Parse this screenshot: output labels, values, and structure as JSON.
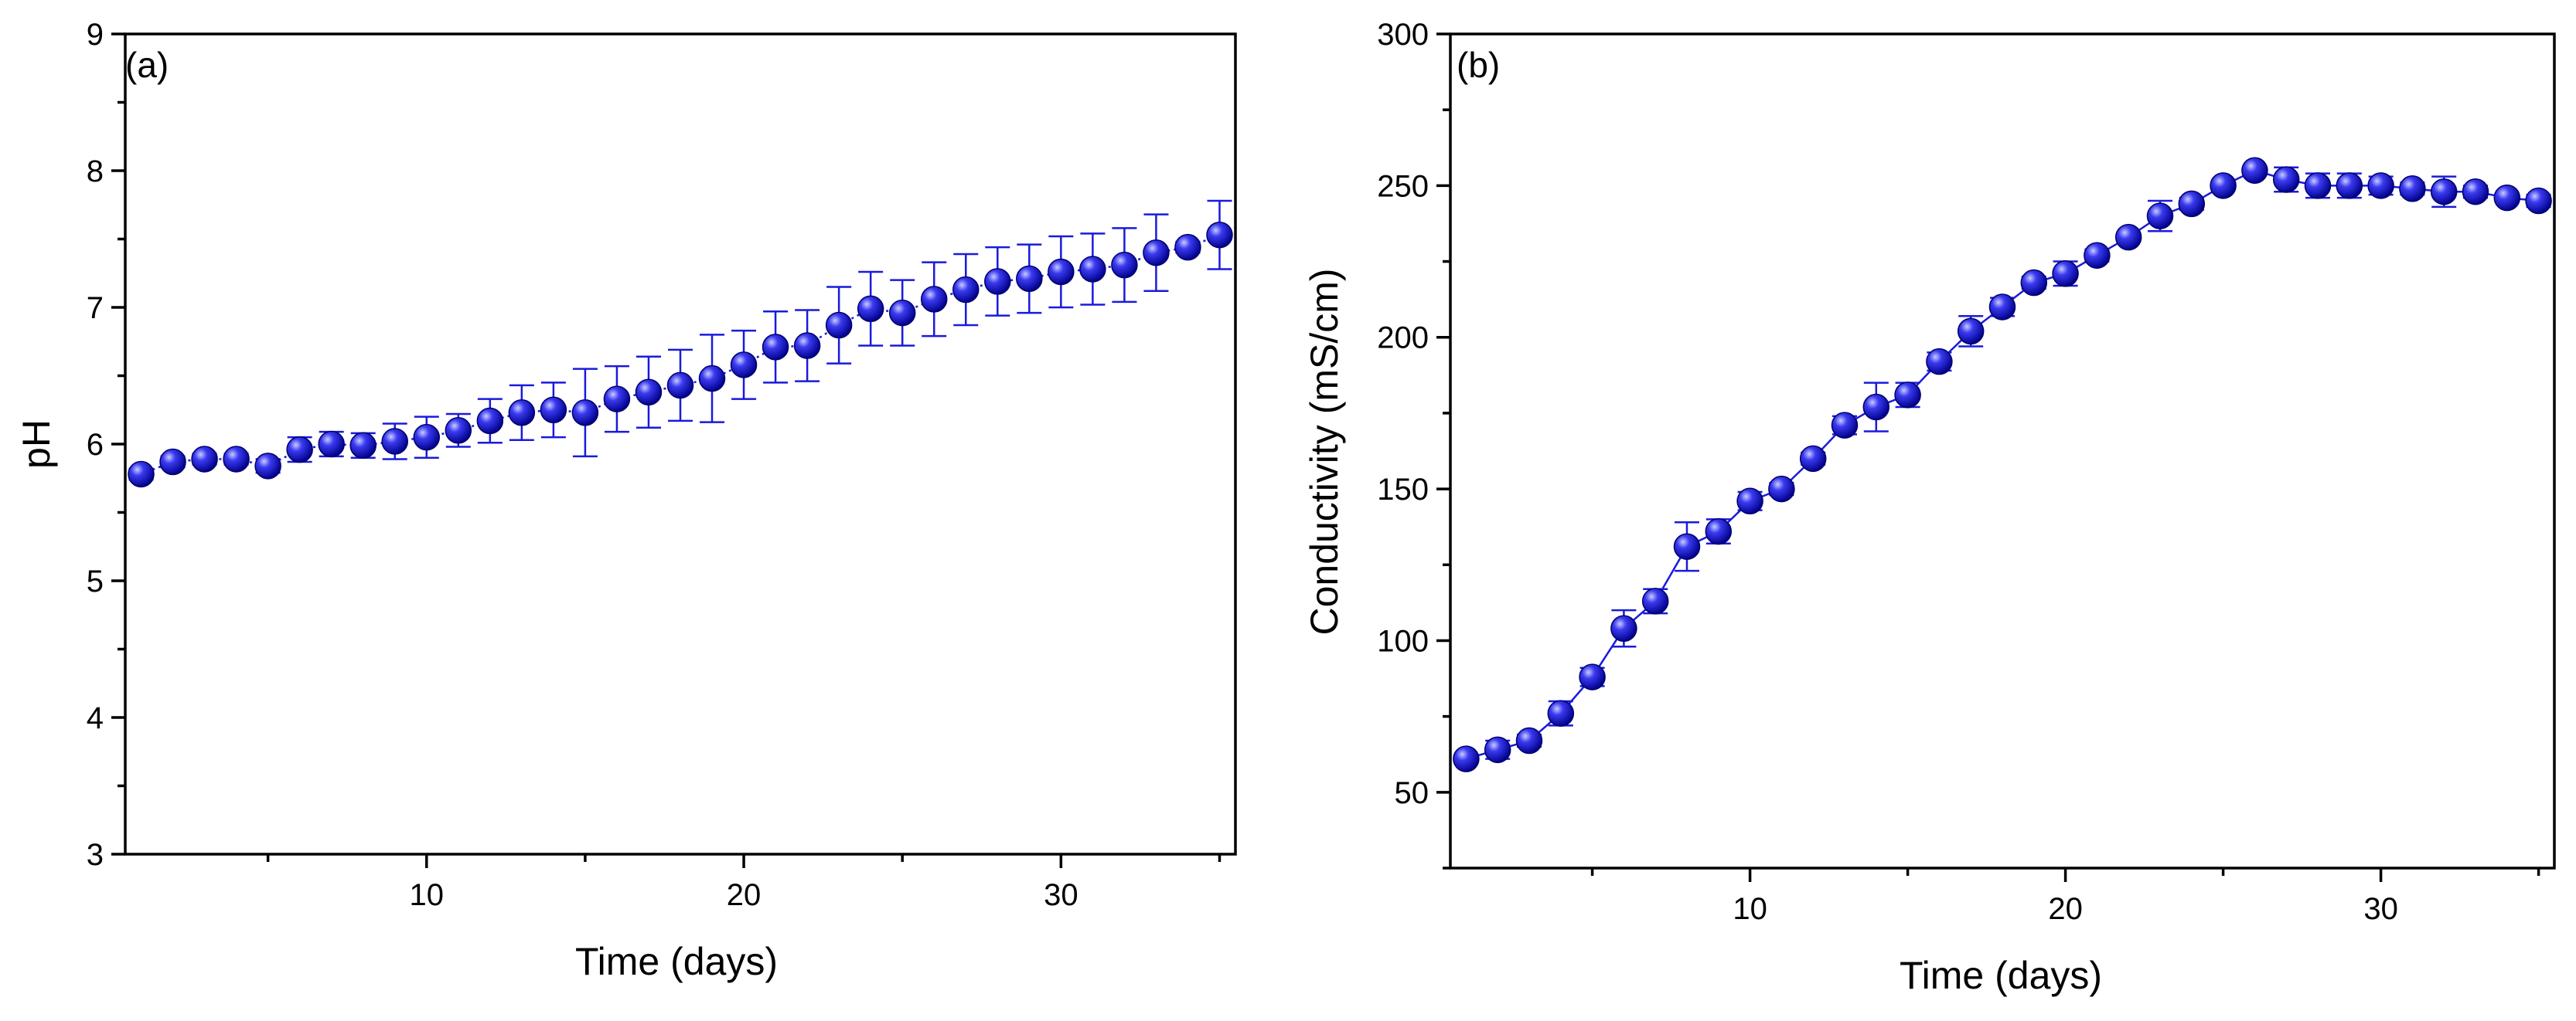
{
  "colors": {
    "series": "#1a1adb",
    "marker_light": "#9aa0ff",
    "marker_dark": "#000090",
    "axis": "#000000"
  },
  "chart_data": [
    {
      "type": "scatter",
      "panel_label": "(a)",
      "title": "",
      "xlabel": "Time (days)",
      "ylabel": "pH",
      "xlim": [
        0.5,
        35.5
      ],
      "ylim": [
        3,
        9
      ],
      "xticks": [
        10,
        20,
        30
      ],
      "yticks": [
        3,
        4,
        5,
        6,
        7,
        8,
        9
      ],
      "line_style": "dotted",
      "grid": false,
      "series": [
        {
          "name": "pH",
          "x": [
            1,
            2,
            3,
            4,
            5,
            6,
            7,
            8,
            9,
            10,
            11,
            12,
            13,
            14,
            15,
            16,
            17,
            18,
            19,
            20,
            21,
            22,
            23,
            24,
            25,
            26,
            27,
            28,
            29,
            30,
            31,
            32,
            33,
            34,
            35
          ],
          "values": [
            5.78,
            5.87,
            5.89,
            5.89,
            5.84,
            5.96,
            6.0,
            5.99,
            6.02,
            6.05,
            6.1,
            6.17,
            6.23,
            6.25,
            6.23,
            6.33,
            6.38,
            6.43,
            6.48,
            6.58,
            6.71,
            6.72,
            6.87,
            6.99,
            6.96,
            7.06,
            7.13,
            7.19,
            7.21,
            7.26,
            7.28,
            7.31,
            7.4,
            7.44,
            7.53
          ],
          "errors": [
            0.04,
            0.04,
            0.04,
            0.04,
            0.05,
            0.09,
            0.09,
            0.09,
            0.13,
            0.15,
            0.12,
            0.16,
            0.2,
            0.2,
            0.32,
            0.24,
            0.26,
            0.26,
            0.32,
            0.25,
            0.26,
            0.26,
            0.28,
            0.27,
            0.24,
            0.27,
            0.26,
            0.25,
            0.25,
            0.26,
            0.26,
            0.27,
            0.28,
            0.04,
            0.25
          ]
        }
      ]
    },
    {
      "type": "line",
      "panel_label": "(b)",
      "title": "",
      "xlabel": "Time (days)",
      "ylabel": "Conductivity (mS/cm)",
      "xlim": [
        0.5,
        35.5
      ],
      "ylim": [
        25,
        300
      ],
      "xticks": [
        10,
        20,
        30
      ],
      "yticks": [
        50,
        100,
        150,
        200,
        250,
        300
      ],
      "line_style": "solid",
      "grid": false,
      "series": [
        {
          "name": "Conductivity",
          "x": [
            1,
            2,
            3,
            4,
            5,
            6,
            7,
            8,
            9,
            10,
            11,
            12,
            13,
            14,
            15,
            16,
            17,
            18,
            19,
            20,
            21,
            22,
            23,
            24,
            25,
            26,
            27,
            28,
            29,
            30,
            31,
            32,
            33,
            34,
            35
          ],
          "values": [
            61,
            64,
            67,
            76,
            88,
            104,
            113,
            131,
            136,
            146,
            150,
            160,
            171,
            177,
            181,
            192,
            202,
            210,
            218,
            221,
            227,
            233,
            240,
            244,
            250,
            255,
            252,
            250,
            250,
            250,
            249,
            248,
            248,
            246,
            245
          ],
          "errors": [
            1,
            3,
            2,
            4,
            3,
            6,
            4,
            8,
            4,
            3,
            2,
            2,
            3,
            8,
            4,
            3,
            5,
            3,
            2,
            4,
            2,
            1,
            5,
            2,
            1,
            1,
            4,
            4,
            4,
            3,
            2,
            5,
            2,
            1,
            2
          ]
        }
      ]
    }
  ]
}
